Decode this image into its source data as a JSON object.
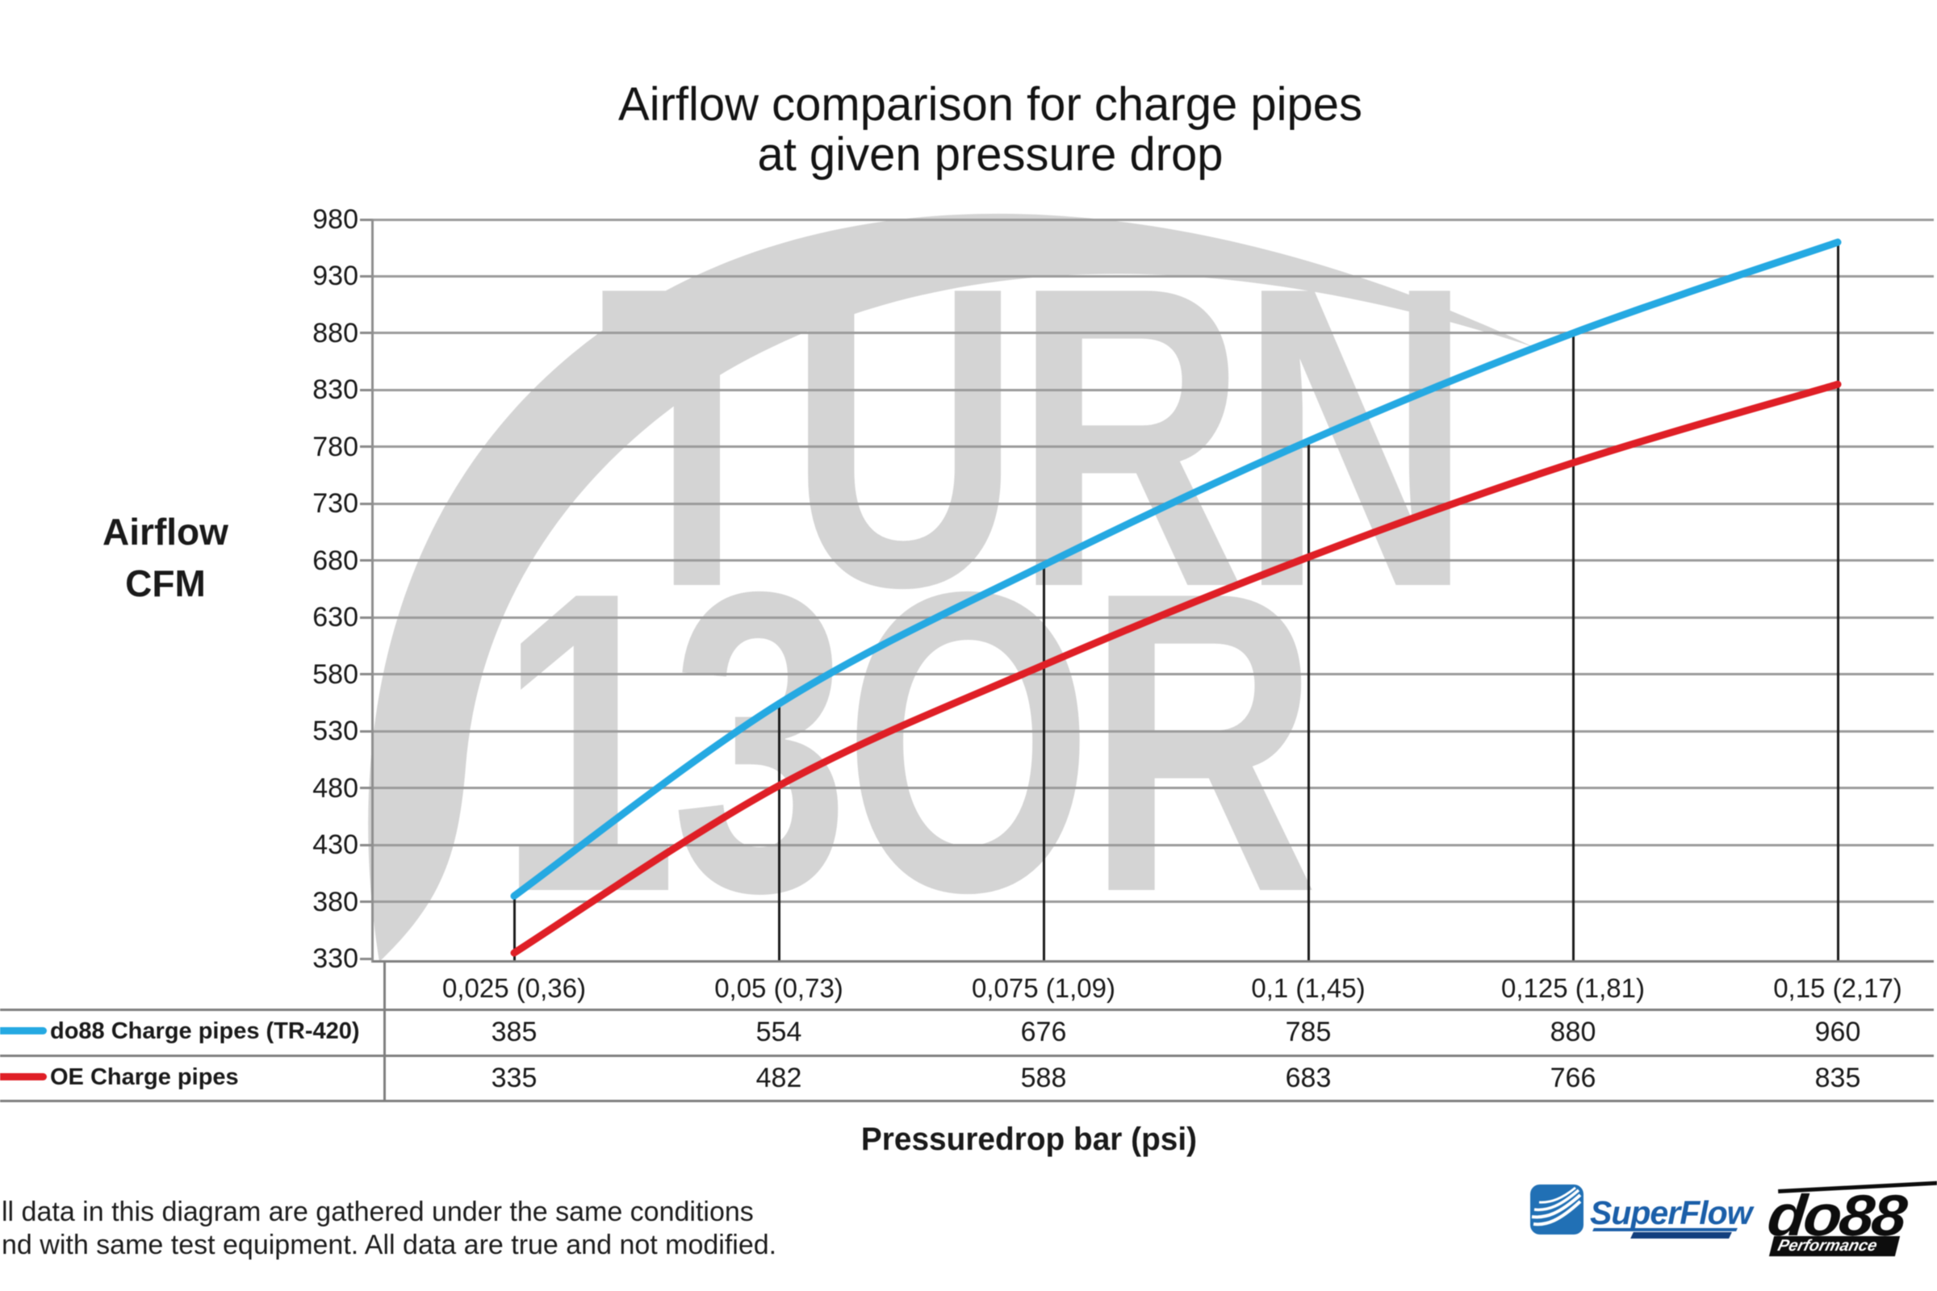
{
  "title": {
    "line1": "Airflow comparison for charge pipes",
    "line2": "at given pressure drop"
  },
  "y_axis": {
    "label_line1": "Airflow",
    "label_line2": "CFM",
    "ticks": [
      980,
      930,
      880,
      830,
      780,
      730,
      680,
      630,
      580,
      530,
      480,
      430,
      380,
      330
    ]
  },
  "x_axis": {
    "label": "Pressuredrop bar (psi)"
  },
  "chart_data": {
    "type": "line",
    "title": "Airflow comparison for charge pipes at given pressure drop",
    "xlabel": "Pressuredrop bar (psi)",
    "ylabel": "Airflow CFM",
    "categories": [
      "0,025 (0,36)",
      "0,05 (0,73)",
      "0,075 (1,09)",
      "0,1 (1,45)",
      "0,125 (1,81)",
      "0,15 (2,17)"
    ],
    "series": [
      {
        "name": "do88 Charge pipes (TR-420)",
        "color": "#25A9E2",
        "values": [
          385,
          554,
          676,
          785,
          880,
          960
        ]
      },
      {
        "name": "OE Charge pipes",
        "color": "#DF1F26",
        "values": [
          335,
          482,
          588,
          683,
          766,
          835
        ]
      }
    ],
    "ylim": [
      330,
      980
    ],
    "ytick_step": 50,
    "grid": true,
    "legend_position": "table-left",
    "drop_lines_color": "#1c1c1c"
  },
  "watermark": {
    "line1": "TURN",
    "line2": "13OR"
  },
  "footer": {
    "line1": "ll data in this diagram are gathered under the same conditions",
    "line2": "nd with same test equipment. All data are true and not modified."
  },
  "logos": {
    "superflow": {
      "name": "SuperFlow"
    },
    "do88": {
      "name": "do88",
      "subtext": "Performance"
    }
  }
}
